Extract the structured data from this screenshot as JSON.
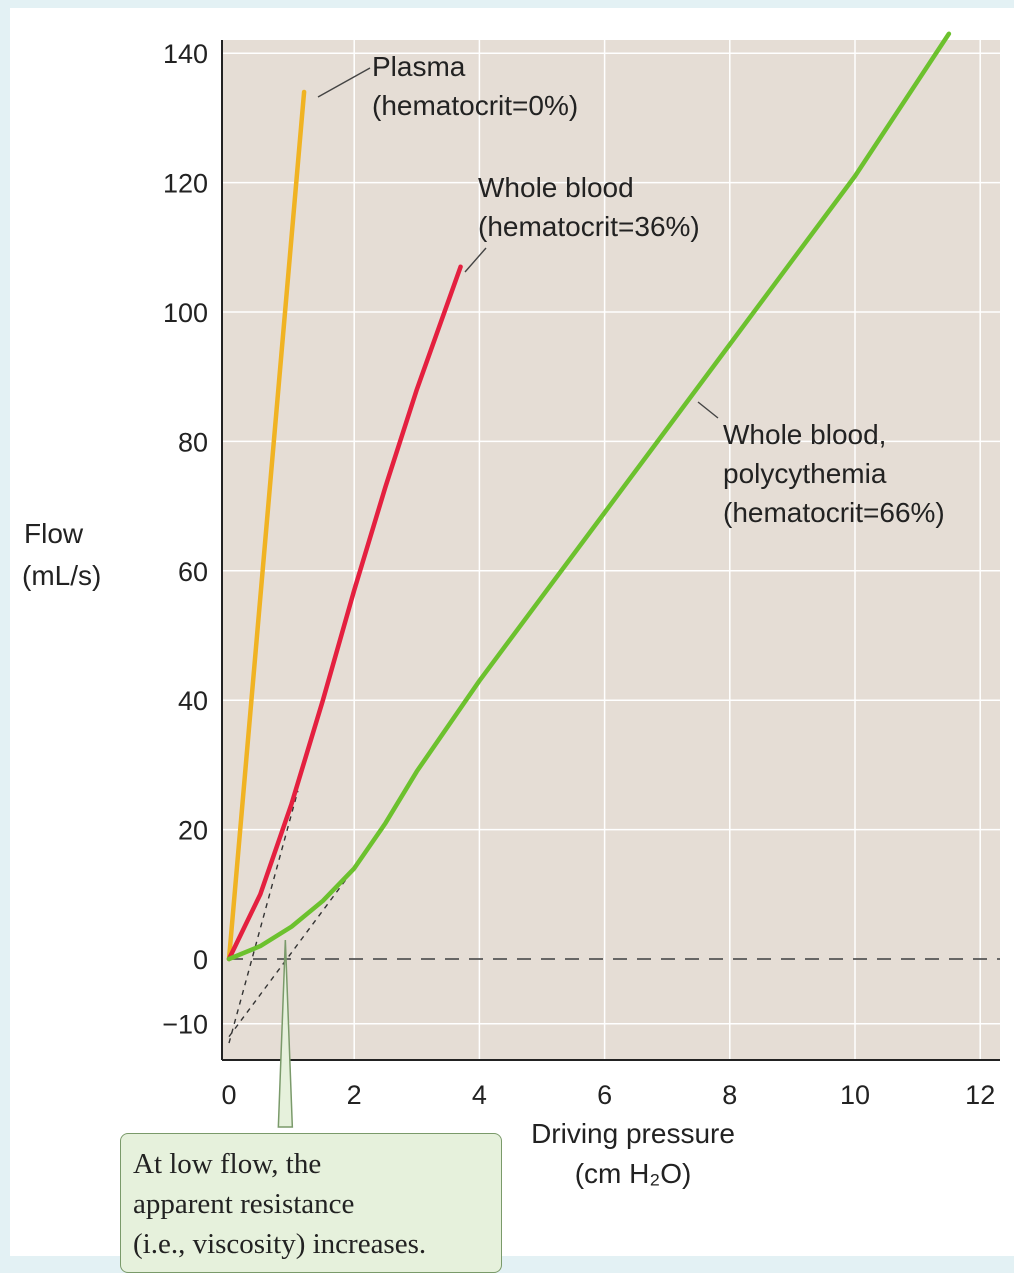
{
  "chart_data": {
    "type": "line",
    "xlabel": "Driving pressure",
    "xlabel_unit": "(cm H₂O)",
    "ylabel": "Flow",
    "ylabel_unit": "(mL/s)",
    "xlim": [
      0,
      12.3
    ],
    "ylim": [
      -15,
      145
    ],
    "x_ticks": [
      "0",
      "2",
      "4",
      "6",
      "8",
      "10",
      "12"
    ],
    "y_ticks": [
      "140",
      "120",
      "100",
      "80",
      "60",
      "40",
      "20",
      "0",
      "−10"
    ],
    "grid": true,
    "series": [
      {
        "name": "Plasma (hematocrit=0%)",
        "label_lines": [
          "Plasma",
          "(hematocrit=0%)"
        ],
        "color": "#f0b323",
        "x": [
          0,
          1.2
        ],
        "y": [
          0,
          134
        ]
      },
      {
        "name": "Whole blood (hematocrit=36%)",
        "label_lines": [
          "Whole blood",
          "(hematocrit=36%)"
        ],
        "color": "#e4203f",
        "x": [
          0,
          0.5,
          1.0,
          1.5,
          2.0,
          2.5,
          3.0,
          3.7
        ],
        "y": [
          0,
          10,
          24,
          40,
          57,
          73,
          88,
          107
        ]
      },
      {
        "name": "Whole blood, polycythemia (hematocrit=66%)",
        "label_lines": [
          "Whole blood,",
          "polycythemia",
          "(hematocrit=66%)"
        ],
        "color": "#6cc12e",
        "x": [
          0,
          0.5,
          1.0,
          1.5,
          2.0,
          2.5,
          3.0,
          4.0,
          5.0,
          6.0,
          7.0,
          8.0,
          9.0,
          10.0,
          11.5
        ],
        "y": [
          0,
          2,
          5,
          9,
          14,
          21,
          29,
          43,
          56,
          69,
          82,
          95,
          108,
          121,
          143
        ]
      }
    ],
    "extrapolations": [
      {
        "series": "Whole blood (hematocrit=36%)",
        "x": [
          0,
          1.1
        ],
        "y": [
          -13,
          26
        ]
      },
      {
        "series": "Whole blood, polycythemia (hematocrit=66%)",
        "x": [
          0,
          2.0
        ],
        "y": [
          -12,
          14
        ]
      }
    ],
    "reference_line": {
      "y": 0,
      "style": "dashed"
    },
    "callout": {
      "lines": [
        "At low flow, the",
        "apparent resistance",
        "(i.e., viscosity) increases."
      ],
      "points_to_x": 0.9
    }
  }
}
